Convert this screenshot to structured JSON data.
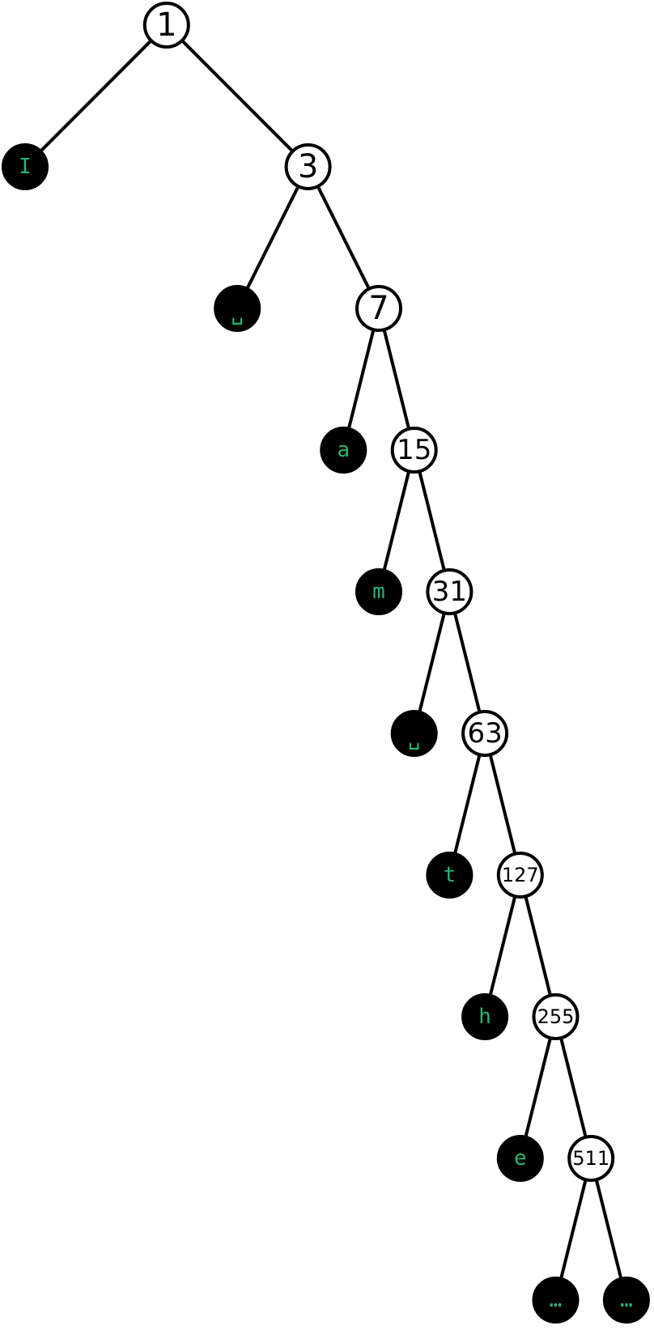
{
  "colors": {
    "background": "#ffffff",
    "edge": "#000000",
    "internal_fill": "#ffffff",
    "leaf_fill": "#000000",
    "leaf_text": "#22b573"
  },
  "nodes": [
    {
      "id": "n1",
      "label": "1",
      "kind": "internal",
      "depth": 0,
      "col": 4
    },
    {
      "id": "l-I",
      "label": "I",
      "kind": "leaf",
      "depth": 1,
      "col": 0,
      "parent": "n1"
    },
    {
      "id": "n3",
      "label": "3",
      "kind": "internal",
      "depth": 1,
      "col": 8,
      "parent": "n1"
    },
    {
      "id": "l-space1",
      "label": "␣",
      "kind": "leaf",
      "depth": 2,
      "col": 6,
      "parent": "n3"
    },
    {
      "id": "n7",
      "label": "7",
      "kind": "internal",
      "depth": 2,
      "col": 10,
      "parent": "n3"
    },
    {
      "id": "l-a",
      "label": "a",
      "kind": "leaf",
      "depth": 3,
      "col": 9,
      "parent": "n7"
    },
    {
      "id": "n15",
      "label": "15",
      "kind": "internal",
      "depth": 3,
      "col": 11,
      "parent": "n7"
    },
    {
      "id": "l-m",
      "label": "m",
      "kind": "leaf",
      "depth": 4,
      "col": 10,
      "parent": "n15"
    },
    {
      "id": "n31",
      "label": "31",
      "kind": "internal",
      "depth": 4,
      "col": 12,
      "parent": "n15"
    },
    {
      "id": "l-space2",
      "label": "␣",
      "kind": "leaf",
      "depth": 5,
      "col": 11,
      "parent": "n31"
    },
    {
      "id": "n63",
      "label": "63",
      "kind": "internal",
      "depth": 5,
      "col": 13,
      "parent": "n31"
    },
    {
      "id": "l-t",
      "label": "t",
      "kind": "leaf",
      "depth": 6,
      "col": 12,
      "parent": "n63"
    },
    {
      "id": "n127",
      "label": "127",
      "kind": "internal",
      "depth": 6,
      "col": 14,
      "parent": "n63"
    },
    {
      "id": "l-h",
      "label": "h",
      "kind": "leaf",
      "depth": 7,
      "col": 13,
      "parent": "n127"
    },
    {
      "id": "n255",
      "label": "255",
      "kind": "internal",
      "depth": 7,
      "col": 15,
      "parent": "n127"
    },
    {
      "id": "l-e",
      "label": "e",
      "kind": "leaf",
      "depth": 8,
      "col": 14,
      "parent": "n255"
    },
    {
      "id": "n511",
      "label": "511",
      "kind": "internal",
      "depth": 8,
      "col": 16,
      "parent": "n255"
    },
    {
      "id": "l-ellipsis1",
      "label": "…",
      "kind": "leaf",
      "depth": 9,
      "col": 15,
      "parent": "n511"
    },
    {
      "id": "l-ellipsis2",
      "label": "…",
      "kind": "leaf",
      "depth": 9,
      "col": 17,
      "parent": "n511"
    }
  ]
}
